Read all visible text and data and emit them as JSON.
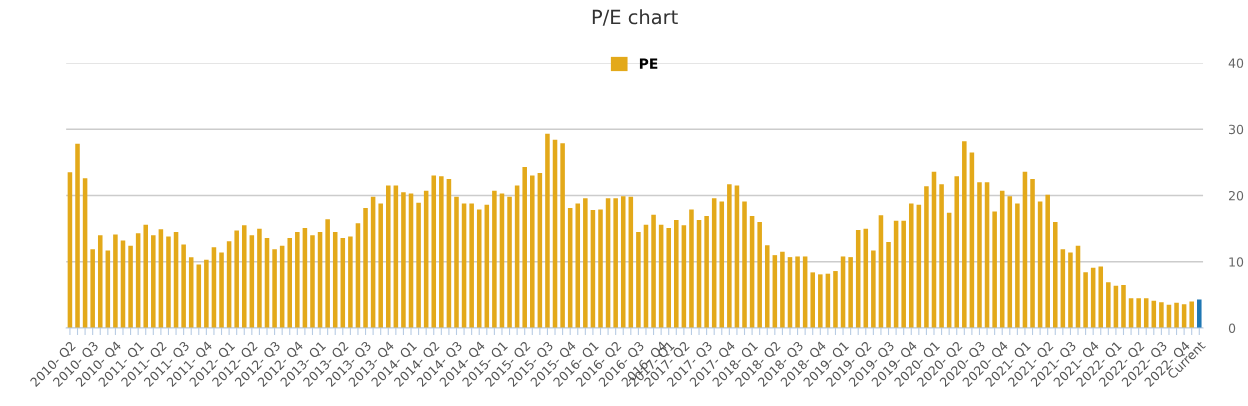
{
  "chart_data": {
    "type": "bar",
    "title": "P/E chart",
    "categories": [
      "2010- Q2",
      null,
      null,
      "2010- Q3",
      null,
      null,
      "2010- Q4",
      null,
      null,
      "2011- Q1",
      null,
      null,
      "2011- Q2",
      null,
      null,
      "2011- Q3",
      null,
      null,
      "2011- Q4",
      null,
      null,
      "2012- Q1",
      null,
      null,
      "2012- Q2",
      null,
      null,
      "2012- Q3",
      null,
      null,
      "2012- Q4",
      null,
      null,
      "2013- Q1",
      null,
      null,
      "2013- Q2",
      null,
      null,
      "2013- Q3",
      null,
      null,
      "2013- Q4",
      null,
      null,
      "2014- Q1",
      null,
      null,
      "2014- Q2",
      null,
      null,
      "2014- Q3",
      null,
      null,
      "2014- Q4",
      null,
      null,
      "2015- Q1",
      null,
      null,
      "2015- Q2",
      null,
      null,
      "2015- Q3",
      null,
      null,
      "2015- Q4",
      null,
      null,
      "2016- Q1",
      null,
      null,
      "2016- Q2",
      null,
      null,
      "2016- Q3",
      null,
      null,
      "2016- Q4",
      "2017- Q1",
      null,
      "2017- Q2",
      null,
      null,
      "2017- Q3",
      null,
      null,
      "2017- Q4",
      null,
      null,
      "2018- Q1",
      null,
      null,
      "2018- Q2",
      null,
      null,
      "2018- Q3",
      null,
      null,
      "2018- Q4",
      null,
      null,
      "2019- Q1",
      null,
      null,
      "2019- Q2",
      null,
      null,
      "2019- Q3",
      null,
      null,
      "2019- Q4",
      null,
      null,
      "2020- Q1",
      null,
      null,
      "2020- Q2",
      null,
      null,
      "2020- Q3",
      null,
      null,
      "2020- Q4",
      null,
      null,
      "2021- Q1",
      null,
      null,
      "2021- Q2",
      null,
      null,
      "2021- Q3",
      null,
      null,
      "2021- Q4",
      null,
      null,
      "2022- Q1",
      null,
      null,
      "2022- Q2",
      null,
      null,
      "2022- Q3",
      null,
      null,
      "2022- Q4",
      null,
      "Current"
    ],
    "series": [
      {
        "name": "PE",
        "color": "#e3a91a",
        "values": [
          23.5,
          27.8,
          22.6,
          11.9,
          14.0,
          11.7,
          14.1,
          13.2,
          12.4,
          14.3,
          15.6,
          14.0,
          14.9,
          13.8,
          14.5,
          12.6,
          10.7,
          9.6,
          10.3,
          12.2,
          11.4,
          13.1,
          14.7,
          15.5,
          14.0,
          15.0,
          13.6,
          11.9,
          12.4,
          13.6,
          14.5,
          15.1,
          14.0,
          14.5,
          16.4,
          14.5,
          13.6,
          13.8,
          15.8,
          18.1,
          19.8,
          18.8,
          21.5,
          21.5,
          20.5,
          20.3,
          18.9,
          20.7,
          23.0,
          22.9,
          22.5,
          19.8,
          18.8,
          18.8,
          17.9,
          18.6,
          20.7,
          20.3,
          19.8,
          21.5,
          24.3,
          23.0,
          23.4,
          29.3,
          28.4,
          27.9,
          18.1,
          18.8,
          19.6,
          17.8,
          17.9,
          19.6,
          19.6,
          19.9,
          19.8,
          14.5,
          15.6,
          17.1,
          15.6,
          15.1,
          16.3,
          15.5,
          17.9,
          16.3,
          16.9,
          19.6,
          19.1,
          21.7,
          21.5,
          19.1,
          16.9,
          16.0,
          12.5,
          11.0,
          11.5,
          10.7,
          10.8,
          10.8,
          8.4,
          8.1,
          8.2,
          8.6,
          10.8,
          10.7,
          14.8,
          15.0,
          11.7,
          17.0,
          13.0,
          16.2,
          16.2,
          18.8,
          18.6,
          21.4,
          23.6,
          21.7,
          17.4,
          22.9,
          28.2,
          26.5,
          22.0,
          22.0,
          17.6,
          20.7,
          19.9,
          18.8,
          23.6,
          22.5,
          19.1,
          20.1,
          16.0,
          11.9,
          11.4,
          12.4,
          8.4,
          9.1,
          9.3,
          6.9,
          6.4,
          6.5,
          4.5,
          4.5,
          4.5,
          4.1,
          3.9,
          3.5,
          3.8,
          3.6,
          4.0,
          4.3
        ],
        "colors": [
          "#e3a91a",
          "#e3a91a",
          "#e3a91a",
          "#e3a91a",
          "#e3a91a",
          "#e3a91a",
          "#e3a91a",
          "#e3a91a",
          "#e3a91a",
          "#e3a91a",
          "#e3a91a",
          "#e3a91a",
          "#e3a91a",
          "#e3a91a",
          "#e3a91a",
          "#e3a91a",
          "#e3a91a",
          "#e3a91a",
          "#e3a91a",
          "#e3a91a",
          "#e3a91a",
          "#e3a91a",
          "#e3a91a",
          "#e3a91a",
          "#e3a91a",
          "#e3a91a",
          "#e3a91a",
          "#e3a91a",
          "#e3a91a",
          "#e3a91a",
          "#e3a91a",
          "#e3a91a",
          "#e3a91a",
          "#e3a91a",
          "#e3a91a",
          "#e3a91a",
          "#e3a91a",
          "#e3a91a",
          "#e3a91a",
          "#e3a91a",
          "#e3a91a",
          "#e3a91a",
          "#e3a91a",
          "#e3a91a",
          "#e3a91a",
          "#e3a91a",
          "#e3a91a",
          "#e3a91a",
          "#e3a91a",
          "#e3a91a",
          "#e3a91a",
          "#e3a91a",
          "#e3a91a",
          "#e3a91a",
          "#e3a91a",
          "#e3a91a",
          "#e3a91a",
          "#e3a91a",
          "#e3a91a",
          "#e3a91a",
          "#e3a91a",
          "#e3a91a",
          "#e3a91a",
          "#e3a91a",
          "#e3a91a",
          "#e3a91a",
          "#e3a91a",
          "#e3a91a",
          "#e3a91a",
          "#e3a91a",
          "#e3a91a",
          "#e3a91a",
          "#e3a91a",
          "#e3a91a",
          "#e3a91a",
          "#e3a91a",
          "#e3a91a",
          "#e3a91a",
          "#e3a91a",
          "#e3a91a",
          "#e3a91a",
          "#e3a91a",
          "#e3a91a",
          "#e3a91a",
          "#e3a91a",
          "#e3a91a",
          "#e3a91a",
          "#e3a91a",
          "#e3a91a",
          "#e3a91a",
          "#e3a91a",
          "#e3a91a",
          "#e3a91a",
          "#e3a91a",
          "#e3a91a",
          "#e3a91a",
          "#e3a91a",
          "#e3a91a",
          "#e3a91a",
          "#e3a91a",
          "#e3a91a",
          "#e3a91a",
          "#e3a91a",
          "#e3a91a",
          "#e3a91a",
          "#e3a91a",
          "#e3a91a",
          "#e3a91a",
          "#e3a91a",
          "#e3a91a",
          "#e3a91a",
          "#e3a91a",
          "#e3a91a",
          "#e3a91a",
          "#e3a91a",
          "#e3a91a",
          "#e3a91a",
          "#e3a91a",
          "#e3a91a",
          "#e3a91a",
          "#e3a91a",
          "#e3a91a",
          "#e3a91a",
          "#e3a91a",
          "#e3a91a",
          "#e3a91a",
          "#e3a91a",
          "#e3a91a",
          "#e3a91a",
          "#e3a91a",
          "#e3a91a",
          "#e3a91a",
          "#e3a91a",
          "#e3a91a",
          "#e3a91a",
          "#e3a91a",
          "#e3a91a",
          "#e3a91a",
          "#e3a91a",
          "#e3a91a",
          "#e3a91a",
          "#e3a91a",
          "#e3a91a",
          "#e3a91a",
          "#e3a91a",
          "#e3a91a",
          "#e3a91a",
          "#e3a91a",
          "#e3a91a",
          "#1f77b4"
        ]
      }
    ],
    "ylim": [
      0,
      40
    ],
    "yticks": [
      0,
      10,
      20,
      30,
      40
    ],
    "grid": "y",
    "legend": "top"
  }
}
